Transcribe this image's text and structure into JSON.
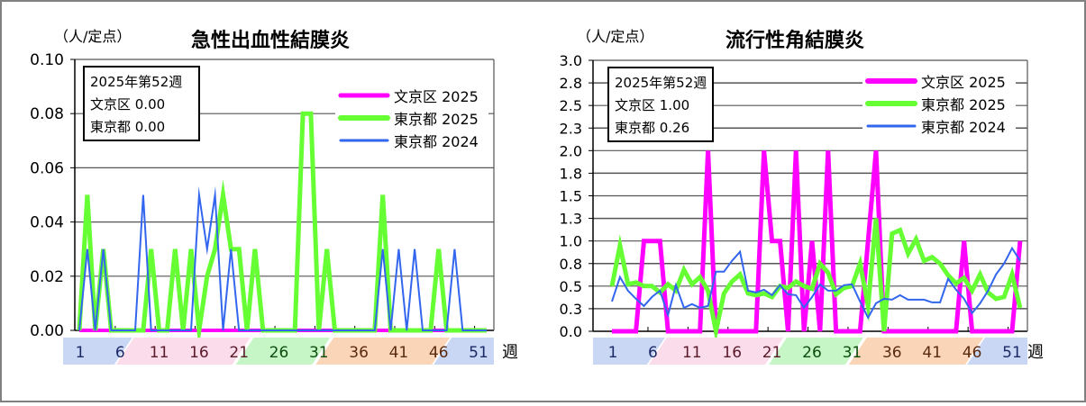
{
  "chart_data": [
    {
      "type": "line",
      "title": "急性出血性結膜炎",
      "ylabel": "（人/定点）",
      "xlabel": "週",
      "ylim": [
        0,
        0.1
      ],
      "yticks": [
        "0.00",
        "0.02",
        "0.04",
        "0.06",
        "0.08",
        "0.10"
      ],
      "ytick_values": [
        0,
        0.02,
        0.04,
        0.06,
        0.08,
        0.1
      ],
      "xtick_labels": [
        "1",
        "6",
        "11",
        "16",
        "21",
        "26",
        "31",
        "36",
        "41",
        "46",
        "51"
      ],
      "grid": true,
      "legend_position": "upper-right",
      "info_box": {
        "line1": "2025年第52週",
        "line2": "文京区  0.00",
        "line3": "東京都  0.00"
      },
      "x": [
        1,
        2,
        3,
        4,
        5,
        6,
        7,
        8,
        9,
        10,
        11,
        12,
        13,
        14,
        15,
        16,
        17,
        18,
        19,
        20,
        21,
        22,
        23,
        24,
        25,
        26,
        27,
        28,
        29,
        30,
        31,
        32,
        33,
        34,
        35,
        36,
        37,
        38,
        39,
        40,
        41,
        42,
        43,
        44,
        45,
        46,
        47,
        48,
        49,
        50,
        51,
        52
      ],
      "series": [
        {
          "name": "文京区 2025",
          "color": "#ff00ff",
          "width": 4,
          "values": [
            0,
            0,
            0,
            0,
            0,
            0,
            0,
            0,
            0,
            0,
            0,
            0,
            0,
            0,
            0,
            0,
            0,
            0,
            0,
            0,
            0,
            0,
            0,
            0,
            0,
            0,
            0,
            0,
            0,
            0,
            0,
            0,
            0,
            0,
            0,
            0,
            0,
            0,
            0,
            0,
            0,
            0,
            0,
            0,
            0,
            0,
            0,
            0,
            0,
            0,
            0,
            0
          ]
        },
        {
          "name": "東京都 2025",
          "color": "#66ff33",
          "width": 5,
          "values": [
            0,
            0.05,
            0,
            0.03,
            0,
            0,
            0,
            0,
            0,
            0.03,
            0,
            0,
            0.03,
            0,
            0.03,
            0,
            0.02,
            0.03,
            0.05,
            0.03,
            0.03,
            0,
            0.03,
            0,
            0,
            0,
            0,
            0,
            0.08,
            0.08,
            0,
            0.03,
            0,
            0,
            0,
            0,
            0,
            0,
            0.05,
            0,
            0,
            0,
            0,
            0,
            0,
            0.03,
            0,
            0,
            0,
            0,
            0,
            0
          ]
        },
        {
          "name": "東京都 2024",
          "color": "#3366ee",
          "width": 2,
          "values": [
            0,
            0.03,
            0,
            0.03,
            0,
            0,
            0,
            0,
            0.05,
            0,
            0,
            0,
            0,
            0,
            0,
            0.05,
            0.03,
            0.05,
            0,
            0.03,
            0,
            0,
            0,
            0,
            0,
            0,
            0,
            0,
            0,
            0,
            0,
            0,
            0,
            0,
            0,
            0,
            0,
            0,
            0.03,
            0,
            0.03,
            0,
            0.03,
            0,
            0,
            0,
            0,
            0.03,
            0,
            0,
            0,
            0
          ]
        }
      ]
    },
    {
      "type": "line",
      "title": "流行性角結膜炎",
      "ylabel": "（人/定点）",
      "xlabel": "週",
      "ylim": [
        0,
        3.0
      ],
      "yticks": [
        "0.0",
        "0.3",
        "0.5",
        "0.8",
        "1.0",
        "1.3",
        "1.5",
        "1.8",
        "2.0",
        "2.3",
        "2.5",
        "2.8",
        "3.0"
      ],
      "ytick_values": [
        0,
        0.25,
        0.5,
        0.75,
        1.0,
        1.25,
        1.5,
        1.75,
        2.0,
        2.25,
        2.5,
        2.75,
        3.0
      ],
      "xtick_labels": [
        "1",
        "6",
        "11",
        "16",
        "21",
        "26",
        "31",
        "36",
        "41",
        "46",
        "51"
      ],
      "grid": true,
      "legend_position": "upper-right",
      "info_box": {
        "line1": "2025年第52週",
        "line2": "文京区  1.00",
        "line3": "東京都  0.26"
      },
      "x": [
        1,
        2,
        3,
        4,
        5,
        6,
        7,
        8,
        9,
        10,
        11,
        12,
        13,
        14,
        15,
        16,
        17,
        18,
        19,
        20,
        21,
        22,
        23,
        24,
        25,
        26,
        27,
        28,
        29,
        30,
        31,
        32,
        33,
        34,
        35,
        36,
        37,
        38,
        39,
        40,
        41,
        42,
        43,
        44,
        45,
        46,
        47,
        48,
        49,
        50,
        51,
        52
      ],
      "series": [
        {
          "name": "文京区 2025",
          "color": "#ff00ff",
          "width": 5,
          "values": [
            0,
            0,
            0,
            0,
            1,
            1,
            1,
            0,
            0,
            0,
            0,
            0,
            2,
            0,
            0,
            0,
            0,
            0,
            0,
            2,
            1,
            1,
            0,
            2,
            0,
            1,
            0,
            2,
            0,
            0,
            0,
            0,
            1,
            2,
            0,
            0,
            0,
            0,
            0,
            0,
            0,
            0,
            0,
            0,
            1,
            0,
            0,
            0,
            0,
            0,
            0,
            1
          ]
        },
        {
          "name": "東京都 2025",
          "color": "#66ff33",
          "width": 5,
          "values": [
            0.5,
            0.95,
            0.52,
            0.54,
            0.5,
            0.5,
            0.43,
            0.52,
            0.45,
            0.68,
            0.52,
            0.6,
            0.45,
            0.0,
            0.42,
            0.55,
            0.63,
            0.42,
            0.4,
            0.42,
            0.38,
            0.5,
            0.48,
            0.55,
            0.5,
            0.47,
            0.75,
            0.65,
            0.41,
            0.48,
            0.5,
            0.75,
            0.28,
            1.25,
            0.0,
            1.08,
            1.12,
            0.86,
            1.02,
            0.78,
            0.82,
            0.75,
            0.62,
            0.53,
            0.59,
            0.45,
            0.63,
            0.43,
            0.36,
            0.38,
            0.63,
            0.26
          ]
        },
        {
          "name": "東京都 2024",
          "color": "#3366ee",
          "width": 2,
          "values": [
            0.33,
            0.6,
            0.45,
            0.36,
            0.28,
            0.38,
            0.45,
            0.18,
            0.51,
            0.26,
            0.3,
            0.26,
            0.28,
            0.66,
            0.66,
            0.78,
            0.88,
            0.45,
            0.43,
            0.46,
            0.4,
            0.51,
            0.41,
            0.4,
            0.26,
            0.38,
            0.52,
            0.45,
            0.45,
            0.51,
            0.52,
            0.33,
            0.15,
            0.31,
            0.36,
            0.35,
            0.4,
            0.35,
            0.35,
            0.35,
            0.32,
            0.32,
            0.58,
            0.46,
            0.36,
            0.2,
            0.31,
            0.45,
            0.63,
            0.75,
            0.92,
            0.78
          ]
        }
      ]
    }
  ],
  "week_bands": [
    {
      "color": "#c9d7f5",
      "labels": [
        "1",
        "6"
      ]
    },
    {
      "color": "#fbdcea",
      "labels": [
        "11",
        "16",
        "21"
      ]
    },
    {
      "color": "#c6f5c6",
      "labels": [
        "26",
        "31"
      ]
    },
    {
      "color": "#fbd5b8",
      "labels": [
        "36",
        "41",
        "46"
      ]
    },
    {
      "color": "#c9d7f5",
      "labels": [
        "51"
      ]
    }
  ]
}
